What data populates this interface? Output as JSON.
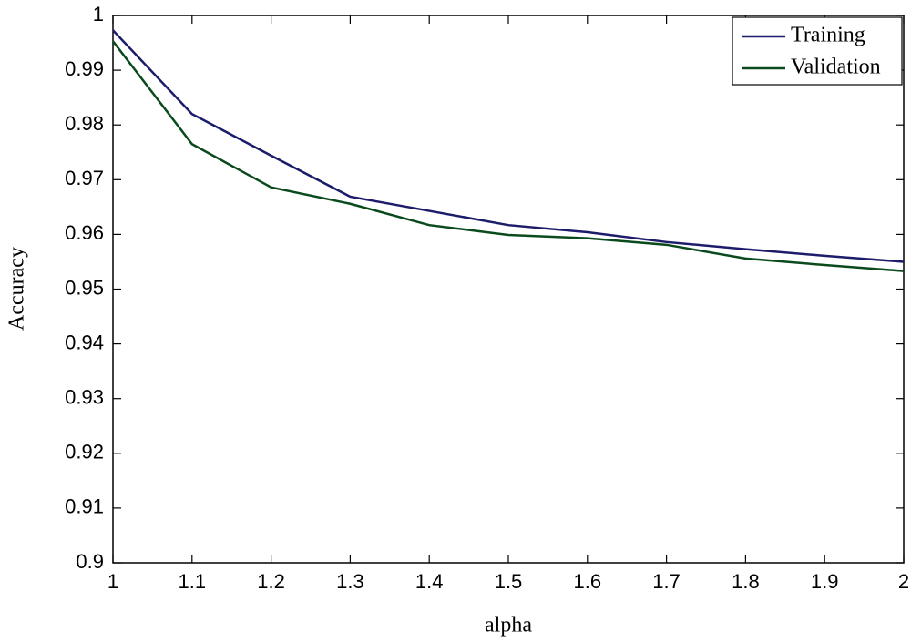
{
  "chart_data": {
    "type": "line",
    "x_label": "alpha",
    "y_label": "Accuracy",
    "x": [
      1,
      1.1,
      1.2,
      1.3,
      1.4,
      1.5,
      1.6,
      1.7,
      1.8,
      1.9,
      2
    ],
    "series": [
      {
        "name": "Training",
        "color": "#1c1c6b",
        "values": [
          0.9973,
          0.982,
          0.9744,
          0.9669,
          0.9643,
          0.9617,
          0.9604,
          0.9586,
          0.9573,
          0.9561,
          0.955
        ]
      },
      {
        "name": "Validation",
        "color": "#0b4a1c",
        "values": [
          0.9953,
          0.9765,
          0.9686,
          0.9656,
          0.9617,
          0.9599,
          0.9593,
          0.9581,
          0.9556,
          0.9544,
          0.9533
        ]
      }
    ],
    "xlim": [
      1,
      2
    ],
    "ylim": [
      0.9,
      1
    ],
    "xticks": [
      1,
      1.1,
      1.2,
      1.3,
      1.4,
      1.5,
      1.6,
      1.7,
      1.8,
      1.9,
      2
    ],
    "yticks": [
      0.9,
      0.91,
      0.92,
      0.93,
      0.94,
      0.95,
      0.96,
      0.97,
      0.98,
      0.99,
      1
    ],
    "legend": "top-right",
    "grid": false
  }
}
